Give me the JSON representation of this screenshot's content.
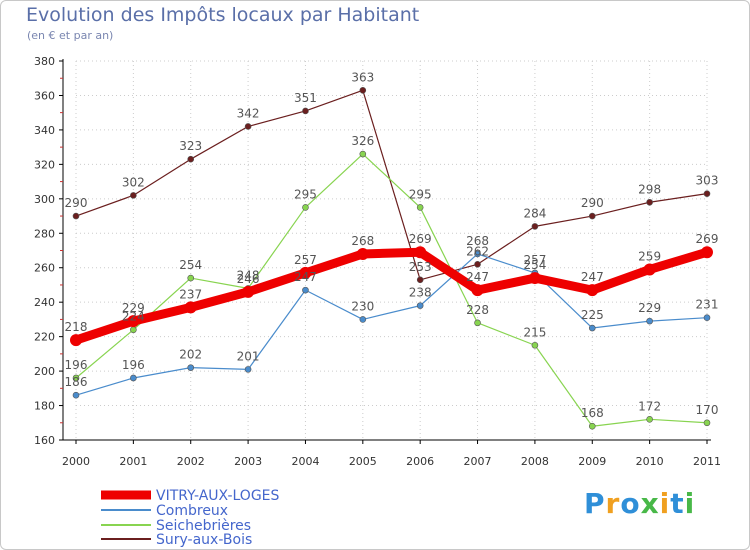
{
  "chart_data": {
    "type": "line",
    "title": "Evolution des Impôts locaux par Habitant",
    "subtitle": "(en € et par an)",
    "xlabel": "",
    "ylabel": "",
    "ylim": [
      160,
      380
    ],
    "yticks": [
      160,
      180,
      200,
      220,
      240,
      260,
      280,
      300,
      320,
      340,
      360,
      380
    ],
    "categories": [
      "2000",
      "2001",
      "2002",
      "2003",
      "2004",
      "2005",
      "2006",
      "2007",
      "2008",
      "2009",
      "2010",
      "2011"
    ],
    "legend_position": "bottom-left",
    "series": [
      {
        "name": "VITRY-AUX-LOGES",
        "color": "#ee0000",
        "values": [
          218,
          229,
          237,
          246,
          257,
          268,
          269,
          247,
          254,
          247,
          259,
          269
        ]
      },
      {
        "name": "Combreux",
        "color": "#4a8ccc",
        "values": [
          186,
          196,
          202,
          201,
          247,
          230,
          238,
          268,
          257,
          225,
          229,
          231
        ]
      },
      {
        "name": "Seichebrières",
        "color": "#88d450",
        "values": [
          196,
          224,
          254,
          248,
          295,
          326,
          295,
          228,
          215,
          168,
          172,
          170
        ]
      },
      {
        "name": "Sury-aux-Bois",
        "color": "#6b1f1f",
        "values": [
          290,
          302,
          323,
          342,
          351,
          363,
          253,
          262,
          284,
          290,
          298,
          303
        ]
      }
    ]
  },
  "logo": {
    "text": "Proxiti",
    "letters": [
      "P",
      "r",
      "o",
      "x",
      "i",
      "t",
      "i"
    ]
  }
}
